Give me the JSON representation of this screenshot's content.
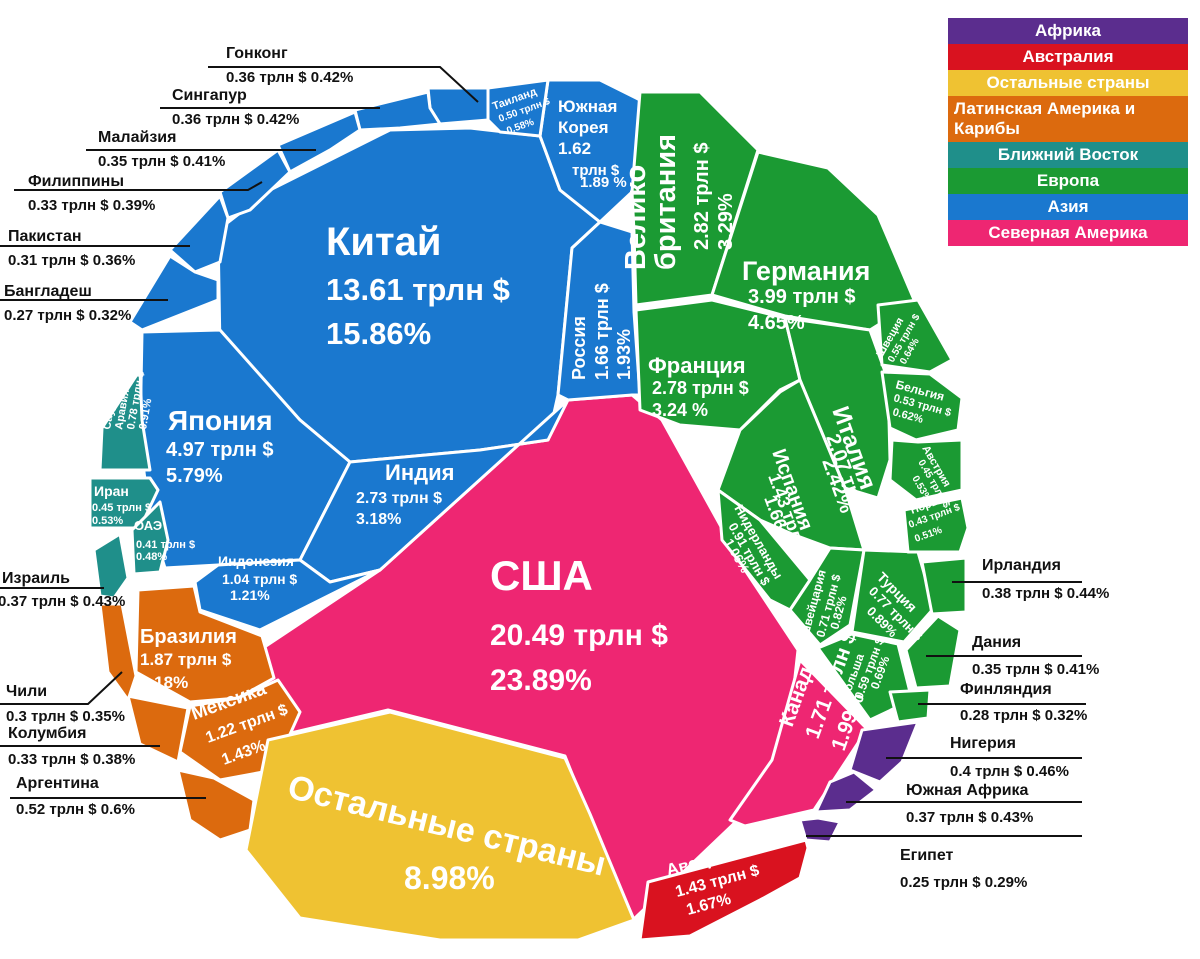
{
  "legend": [
    {
      "label": "Африка",
      "color": "#5b2d8e"
    },
    {
      "label": "Австралия",
      "color": "#d9121f"
    },
    {
      "label": "Остальные страны",
      "color": "#efc232"
    },
    {
      "label": "Латинская Америка и Карибы",
      "color": "#dc6a0e"
    },
    {
      "label": "Ближний Восток",
      "color": "#1f8f8a"
    },
    {
      "label": "Европа",
      "color": "#1b9a33"
    },
    {
      "label": "Азия",
      "color": "#1a78cf"
    },
    {
      "label": "Северная Америка",
      "color": "#ee2672"
    }
  ],
  "chart_data": {
    "type": "voronoi-treemap",
    "unit": "трлн $",
    "items": [
      {
        "name": "США",
        "value_label": "20.49 трлн $",
        "share_label": "23.89%",
        "value": 20.49,
        "share": 23.89,
        "region": "Северная Америка"
      },
      {
        "name": "Канада",
        "value_label": "1.71 трлн $",
        "share_label": "1.99%",
        "value": 1.71,
        "share": 1.99,
        "region": "Северная Америка"
      },
      {
        "name": "Китай",
        "value_label": "13.61 трлн $",
        "share_label": "15.86%",
        "value": 13.61,
        "share": 15.86,
        "region": "Азия"
      },
      {
        "name": "Япония",
        "value_label": "4.97 трлн $",
        "share_label": "5.79%",
        "value": 4.97,
        "share": 5.79,
        "region": "Азия"
      },
      {
        "name": "Индия",
        "value_label": "2.73 трлн $",
        "share_label": "3.18%",
        "value": 2.73,
        "share": 3.18,
        "region": "Азия"
      },
      {
        "name": "Россия",
        "value_label": "1.66 трлн $",
        "share_label": "1.93%",
        "value": 1.66,
        "share": 1.93,
        "region": "Азия"
      },
      {
        "name": "Южная Корея",
        "value_label": "1.62 трлн $",
        "share_label": "1.89 %",
        "value": 1.62,
        "share": 1.89,
        "region": "Азия"
      },
      {
        "name": "Индонезия",
        "value_label": "1.04 трлн $",
        "share_label": "1.21%",
        "value": 1.04,
        "share": 1.21,
        "region": "Азия"
      },
      {
        "name": "Таиланд",
        "value_label": "0.50 трлн $",
        "share_label": "0.58%",
        "value": 0.5,
        "share": 0.58,
        "region": "Азия"
      },
      {
        "name": "Гонконг",
        "value_label": "0.36 трлн $",
        "share_label": "0.42%",
        "value": 0.36,
        "share": 0.42,
        "region": "Азия"
      },
      {
        "name": "Сингапур",
        "value_label": "0.36 трлн $",
        "share_label": "0.42%",
        "value": 0.36,
        "share": 0.42,
        "region": "Азия"
      },
      {
        "name": "Малайзия",
        "value_label": "0.35 трлн $",
        "share_label": "0.41%",
        "value": 0.35,
        "share": 0.41,
        "region": "Азия"
      },
      {
        "name": "Филиппины",
        "value_label": "0.33 трлн $",
        "share_label": "0.39%",
        "value": 0.33,
        "share": 0.39,
        "region": "Азия"
      },
      {
        "name": "Пакистан",
        "value_label": "0.31 трлн $",
        "share_label": "0.36%",
        "value": 0.31,
        "share": 0.36,
        "region": "Азия"
      },
      {
        "name": "Бангладеш",
        "value_label": "0.27 трлн $",
        "share_label": "0.32%",
        "value": 0.27,
        "share": 0.32,
        "region": "Азия"
      },
      {
        "name": "Великобритания",
        "value_label": "2.82 трлн $",
        "share_label": "3.29%",
        "value": 2.82,
        "share": 3.29,
        "region": "Европа"
      },
      {
        "name": "Германия",
        "value_label": "3.99 трлн $",
        "share_label": "4.65%",
        "value": 3.99,
        "share": 4.65,
        "region": "Европа"
      },
      {
        "name": "Франция",
        "value_label": "2.78 трлн $",
        "share_label": "3.24 %",
        "value": 2.78,
        "share": 3.24,
        "region": "Европа"
      },
      {
        "name": "Италия",
        "value_label": "2.07 трлн $",
        "share_label": "2.42%",
        "value": 2.07,
        "share": 2.42,
        "region": "Европа"
      },
      {
        "name": "Испания",
        "value_label": "1.43 трлн $",
        "share_label": "1.66 %",
        "value": 1.43,
        "share": 1.66,
        "region": "Европа"
      },
      {
        "name": "Нидерланды",
        "value_label": "0.91 трлн $",
        "share_label": "1.06%",
        "value": 0.91,
        "share": 1.06,
        "region": "Европа"
      },
      {
        "name": "Швейцария",
        "value_label": "0.71 трлн $",
        "share_label": "0.82%",
        "value": 0.71,
        "share": 0.82,
        "region": "Европа"
      },
      {
        "name": "Турция",
        "value_label": "0.77 трлн $",
        "share_label": "0.89%",
        "value": 0.77,
        "share": 0.89,
        "region": "Европа"
      },
      {
        "name": "Польша",
        "value_label": "0.59 трлн $",
        "share_label": "0.69%",
        "value": 0.59,
        "share": 0.69,
        "region": "Европа"
      },
      {
        "name": "Швеция",
        "value_label": "0.55 трлн $",
        "share_label": "0.64%",
        "value": 0.55,
        "share": 0.64,
        "region": "Европа"
      },
      {
        "name": "Бельгия",
        "value_label": "0.53 трлн $",
        "share_label": "0.62%",
        "value": 0.53,
        "share": 0.62,
        "region": "Европа"
      },
      {
        "name": "Австрия",
        "value_label": "0.45 трлн $",
        "share_label": "0.53%",
        "value": 0.45,
        "share": 0.53,
        "region": "Европа"
      },
      {
        "name": "Норвегия",
        "value_label": "0.43 трлн $",
        "share_label": "0.51%",
        "value": 0.43,
        "share": 0.51,
        "region": "Европа"
      },
      {
        "name": "Ирландия",
        "value_label": "0.38 трлн $",
        "share_label": "0.44%",
        "value": 0.38,
        "share": 0.44,
        "region": "Европа"
      },
      {
        "name": "Дания",
        "value_label": "0.35 трлн $",
        "share_label": "0.41%",
        "value": 0.35,
        "share": 0.41,
        "region": "Европа"
      },
      {
        "name": "Финляндия",
        "value_label": "0.28 трлн $",
        "share_label": "0.32%",
        "value": 0.28,
        "share": 0.32,
        "region": "Европа"
      },
      {
        "name": "Саудовская Аравия",
        "value_label": "0.78 трлн $",
        "share_label": "0.91%",
        "value": 0.78,
        "share": 0.91,
        "region": "Ближний Восток"
      },
      {
        "name": "Иран",
        "value_label": "0.45 трлн $",
        "share_label": "0.53%",
        "value": 0.45,
        "share": 0.53,
        "region": "Ближний Восток"
      },
      {
        "name": "ОАЭ",
        "value_label": "0.41 трлн $",
        "share_label": "0.48%",
        "value": 0.41,
        "share": 0.48,
        "region": "Ближний Восток"
      },
      {
        "name": "Израиль",
        "value_label": "0.37 трлн $",
        "share_label": "0.43%",
        "value": 0.37,
        "share": 0.43,
        "region": "Ближний Восток"
      },
      {
        "name": "Бразилия",
        "value_label": "1.87 трлн $",
        "share_label": "2.18%",
        "value": 1.87,
        "share": 2.18,
        "region": "Латинская Америка и Карибы"
      },
      {
        "name": "Мексика",
        "value_label": "1.22 трлн $",
        "share_label": "1.43%",
        "value": 1.22,
        "share": 1.43,
        "region": "Латинская Америка и Карибы"
      },
      {
        "name": "Аргентина",
        "value_label": "0.52 трлн $",
        "share_label": "0.6%",
        "value": 0.52,
        "share": 0.6,
        "region": "Латинская Америка и Карибы"
      },
      {
        "name": "Колумбия",
        "value_label": "0.33 трлн $",
        "share_label": "0.38%",
        "value": 0.33,
        "share": 0.38,
        "region": "Латинская Америка и Карибы"
      },
      {
        "name": "Чили",
        "value_label": "0.3 трлн $",
        "share_label": "0.35%",
        "value": 0.3,
        "share": 0.35,
        "region": "Латинская Америка и Карибы"
      },
      {
        "name": "Остальные страны",
        "value_label": "",
        "share_label": "8.98%",
        "value": null,
        "share": 8.98,
        "region": "Остальные страны"
      },
      {
        "name": "Австралия",
        "value_label": "1.43 трлн $",
        "share_label": "1.67%",
        "value": 1.43,
        "share": 1.67,
        "region": "Австралия"
      },
      {
        "name": "Нигерия",
        "value_label": "0.4 трлн $",
        "share_label": "0.46%",
        "value": 0.4,
        "share": 0.46,
        "region": "Африка"
      },
      {
        "name": "Южная Африка",
        "value_label": "0.37 трлн $",
        "share_label": "0.43%",
        "value": 0.37,
        "share": 0.43,
        "region": "Африка"
      },
      {
        "name": "Египет",
        "value_label": "0.25 трлн $",
        "share_label": "0.29%",
        "value": 0.25,
        "share": 0.29,
        "region": "Африка"
      }
    ]
  }
}
